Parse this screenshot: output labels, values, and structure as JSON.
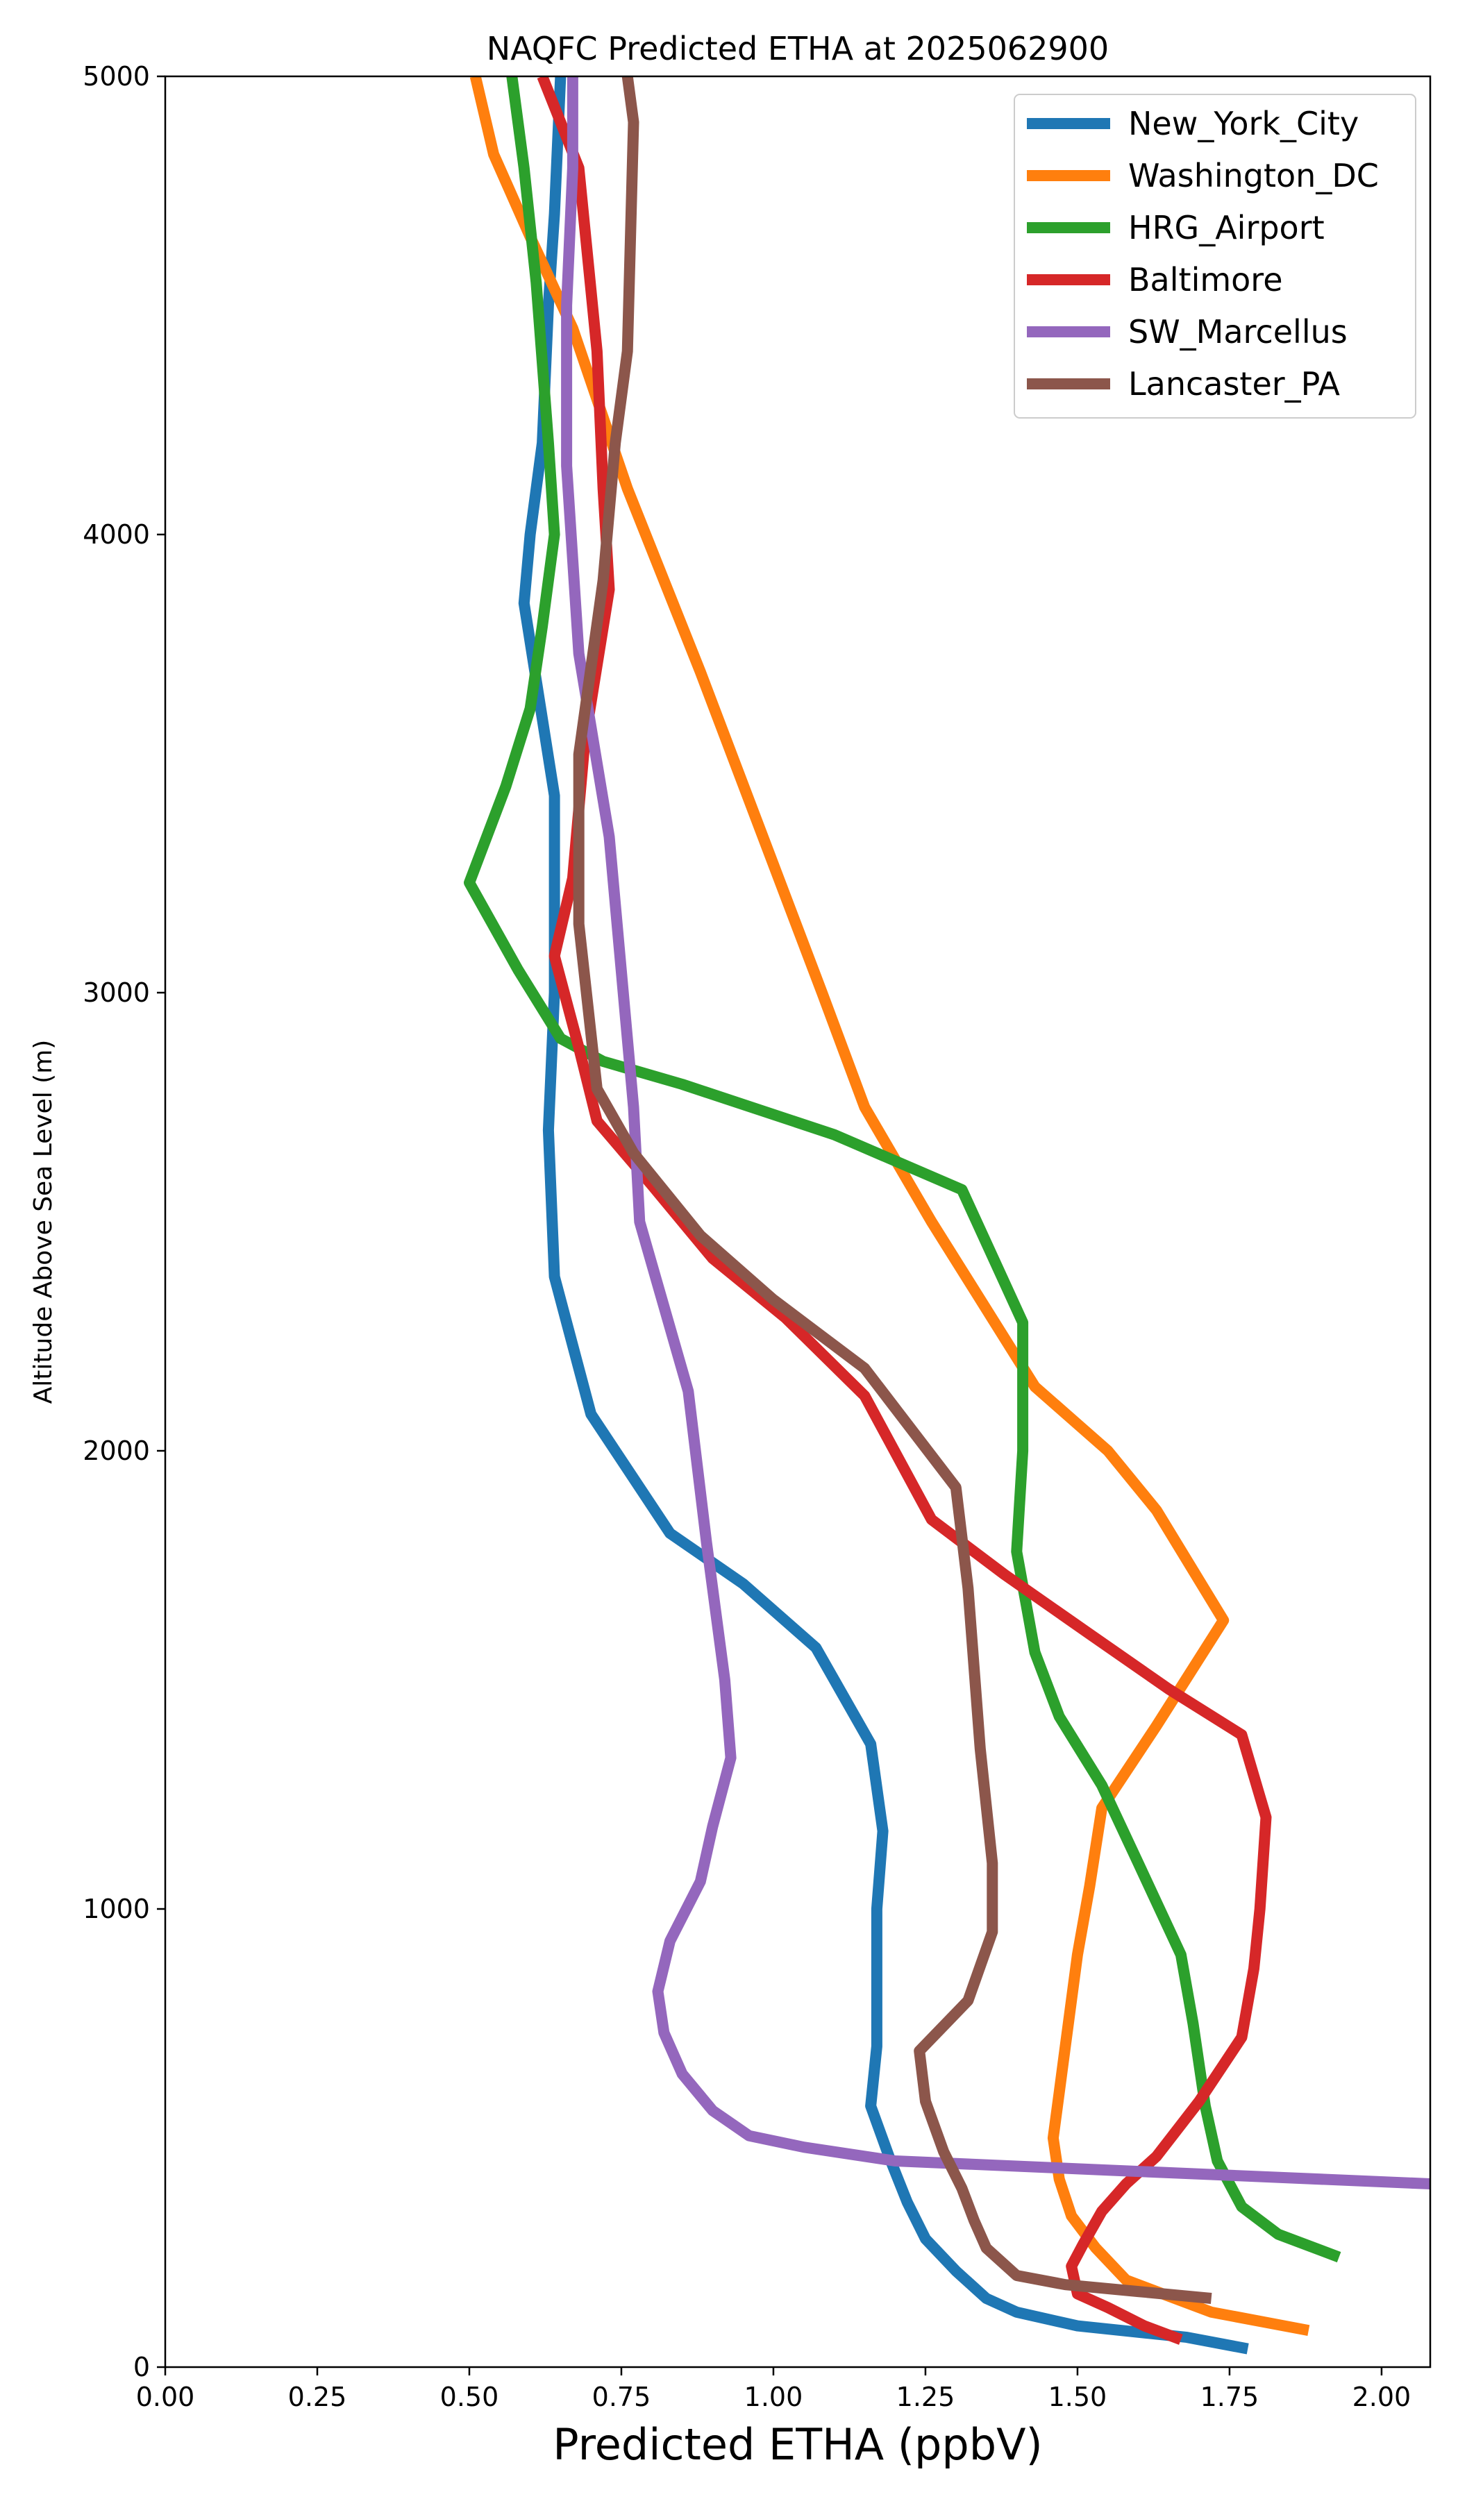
{
  "chart_data": {
    "type": "line",
    "title": "NAQFC Predicted ETHA at 2025062900",
    "xlabel": "Predicted ETHA (ppbV)",
    "ylabel": "Altitude Above Sea Level (m)",
    "xlim": [
      0.0,
      2.08
    ],
    "ylim": [
      0,
      5000
    ],
    "xticks": [
      "0.00",
      "0.25",
      "0.50",
      "0.75",
      "1.00",
      "1.25",
      "1.50",
      "1.75",
      "2.00"
    ],
    "xtick_values": [
      0,
      0.25,
      0.5,
      0.75,
      1.0,
      1.25,
      1.5,
      1.75,
      2.0
    ],
    "yticks": [
      "0",
      "1000",
      "2000",
      "3000",
      "4000",
      "5000"
    ],
    "ytick_values": [
      0,
      1000,
      2000,
      3000,
      4000,
      5000
    ],
    "grid": false,
    "legend_position": "top-right",
    "series": [
      {
        "name": "New_York_City",
        "color": "#1f77b4",
        "points": [
          [
            1.78,
            40
          ],
          [
            1.68,
            65
          ],
          [
            1.5,
            90
          ],
          [
            1.4,
            120
          ],
          [
            1.35,
            150
          ],
          [
            1.3,
            210
          ],
          [
            1.25,
            280
          ],
          [
            1.22,
            360
          ],
          [
            1.19,
            460
          ],
          [
            1.16,
            570
          ],
          [
            1.17,
            700
          ],
          [
            1.17,
            1000
          ],
          [
            1.18,
            1170
          ],
          [
            1.16,
            1360
          ],
          [
            1.07,
            1570
          ],
          [
            0.95,
            1710
          ],
          [
            0.83,
            1820
          ],
          [
            0.7,
            2080
          ],
          [
            0.64,
            2380
          ],
          [
            0.63,
            2700
          ],
          [
            0.64,
            3000
          ],
          [
            0.64,
            3430
          ],
          [
            0.59,
            3850
          ],
          [
            0.6,
            4000
          ],
          [
            0.62,
            4200
          ],
          [
            0.63,
            4500
          ],
          [
            0.64,
            4700
          ],
          [
            0.65,
            5000
          ]
        ]
      },
      {
        "name": "Washington_DC",
        "color": "#ff7f0e",
        "points": [
          [
            1.88,
            80
          ],
          [
            1.72,
            120
          ],
          [
            1.58,
            190
          ],
          [
            1.53,
            260
          ],
          [
            1.49,
            330
          ],
          [
            1.47,
            410
          ],
          [
            1.46,
            500
          ],
          [
            1.47,
            600
          ],
          [
            1.48,
            700
          ],
          [
            1.5,
            900
          ],
          [
            1.52,
            1050
          ],
          [
            1.54,
            1220
          ],
          [
            1.63,
            1400
          ],
          [
            1.74,
            1630
          ],
          [
            1.63,
            1870
          ],
          [
            1.55,
            2000
          ],
          [
            1.43,
            2140
          ],
          [
            1.26,
            2500
          ],
          [
            1.15,
            2750
          ],
          [
            1.08,
            3000
          ],
          [
            0.98,
            3350
          ],
          [
            0.88,
            3700
          ],
          [
            0.76,
            4100
          ],
          [
            0.67,
            4450
          ],
          [
            0.6,
            4650
          ],
          [
            0.54,
            4830
          ],
          [
            0.51,
            5000
          ]
        ]
      },
      {
        "name": "HRG_Airport",
        "color": "#2ca02c",
        "points": [
          [
            1.93,
            240
          ],
          [
            1.83,
            290
          ],
          [
            1.77,
            350
          ],
          [
            1.73,
            450
          ],
          [
            1.71,
            570
          ],
          [
            1.69,
            750
          ],
          [
            1.67,
            900
          ],
          [
            1.6,
            1100
          ],
          [
            1.54,
            1270
          ],
          [
            1.47,
            1420
          ],
          [
            1.43,
            1560
          ],
          [
            1.4,
            1780
          ],
          [
            1.41,
            2000
          ],
          [
            1.41,
            2280
          ],
          [
            1.31,
            2570
          ],
          [
            1.1,
            2690
          ],
          [
            0.85,
            2800
          ],
          [
            0.72,
            2850
          ],
          [
            0.65,
            2900
          ],
          [
            0.58,
            3050
          ],
          [
            0.5,
            3240
          ],
          [
            0.56,
            3450
          ],
          [
            0.6,
            3620
          ],
          [
            0.62,
            3800
          ],
          [
            0.64,
            4000
          ],
          [
            0.63,
            4200
          ],
          [
            0.61,
            4550
          ],
          [
            0.59,
            4800
          ],
          [
            0.57,
            5000
          ]
        ]
      },
      {
        "name": "Baltimore",
        "color": "#d62728",
        "points": [
          [
            1.67,
            60
          ],
          [
            1.61,
            90
          ],
          [
            1.55,
            130
          ],
          [
            1.5,
            160
          ],
          [
            1.49,
            220
          ],
          [
            1.51,
            270
          ],
          [
            1.54,
            340
          ],
          [
            1.58,
            400
          ],
          [
            1.63,
            460
          ],
          [
            1.7,
            580
          ],
          [
            1.74,
            660
          ],
          [
            1.77,
            720
          ],
          [
            1.79,
            870
          ],
          [
            1.8,
            1000
          ],
          [
            1.81,
            1200
          ],
          [
            1.77,
            1380
          ],
          [
            1.65,
            1480
          ],
          [
            1.52,
            1600
          ],
          [
            1.38,
            1730
          ],
          [
            1.26,
            1850
          ],
          [
            1.15,
            2120
          ],
          [
            1.02,
            2290
          ],
          [
            0.9,
            2420
          ],
          [
            0.8,
            2580
          ],
          [
            0.71,
            2720
          ],
          [
            0.68,
            2880
          ],
          [
            0.64,
            3080
          ],
          [
            0.67,
            3250
          ],
          [
            0.69,
            3550
          ],
          [
            0.73,
            3880
          ],
          [
            0.72,
            4100
          ],
          [
            0.71,
            4400
          ],
          [
            0.68,
            4800
          ],
          [
            0.62,
            5000
          ]
        ]
      },
      {
        "name": "SW_Marcellus",
        "color": "#9467bd",
        "points": [
          [
            2.08,
            400
          ],
          [
            1.55,
            430
          ],
          [
            1.2,
            450
          ],
          [
            1.05,
            480
          ],
          [
            0.96,
            505
          ],
          [
            0.9,
            560
          ],
          [
            0.85,
            640
          ],
          [
            0.82,
            730
          ],
          [
            0.81,
            820
          ],
          [
            0.83,
            930
          ],
          [
            0.88,
            1060
          ],
          [
            0.9,
            1180
          ],
          [
            0.93,
            1330
          ],
          [
            0.92,
            1500
          ],
          [
            0.89,
            1800
          ],
          [
            0.86,
            2130
          ],
          [
            0.78,
            2500
          ],
          [
            0.77,
            2750
          ],
          [
            0.73,
            3340
          ],
          [
            0.68,
            3740
          ],
          [
            0.66,
            4150
          ],
          [
            0.66,
            4500
          ],
          [
            0.67,
            4800
          ],
          [
            0.67,
            5000
          ]
        ]
      },
      {
        "name": "Lancaster_PA",
        "color": "#8c564b",
        "points": [
          [
            1.72,
            150
          ],
          [
            1.6,
            165
          ],
          [
            1.48,
            180
          ],
          [
            1.4,
            200
          ],
          [
            1.35,
            260
          ],
          [
            1.33,
            320
          ],
          [
            1.31,
            390
          ],
          [
            1.28,
            470
          ],
          [
            1.25,
            580
          ],
          [
            1.24,
            690
          ],
          [
            1.32,
            800
          ],
          [
            1.36,
            950
          ],
          [
            1.36,
            1100
          ],
          [
            1.34,
            1350
          ],
          [
            1.32,
            1700
          ],
          [
            1.3,
            1920
          ],
          [
            1.15,
            2180
          ],
          [
            1.0,
            2330
          ],
          [
            0.88,
            2470
          ],
          [
            0.77,
            2650
          ],
          [
            0.71,
            2790
          ],
          [
            0.68,
            3150
          ],
          [
            0.68,
            3520
          ],
          [
            0.72,
            3900
          ],
          [
            0.74,
            4200
          ],
          [
            0.76,
            4400
          ],
          [
            0.77,
            4900
          ],
          [
            0.76,
            5000
          ]
        ]
      }
    ]
  }
}
